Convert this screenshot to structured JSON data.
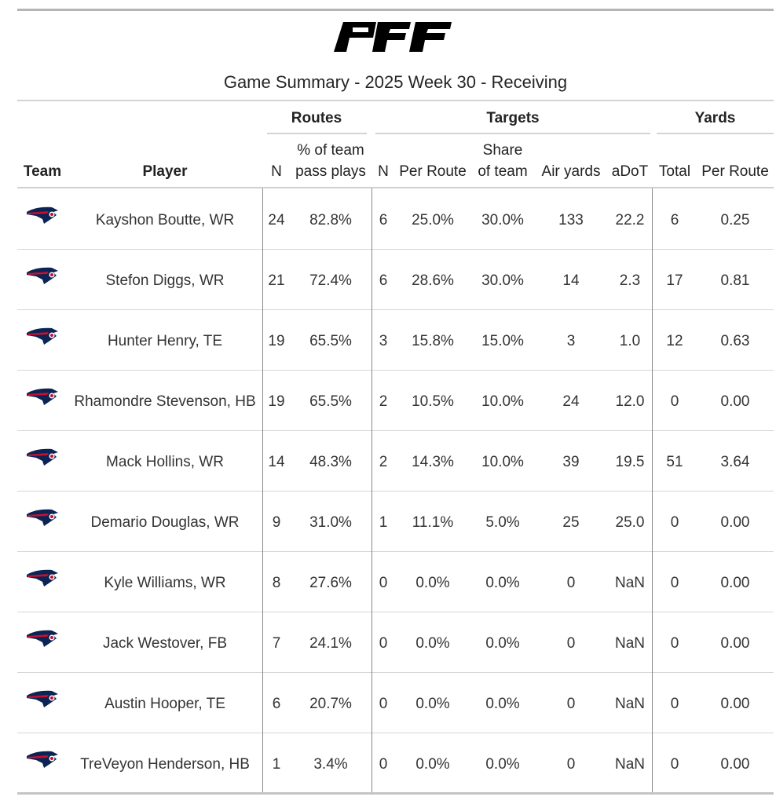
{
  "title": "Game Summary - 2025 Week 30 - Receiving",
  "logo_text": "PFF",
  "spanners": {
    "routes": "Routes",
    "targets": "Targets",
    "yards": "Yards"
  },
  "columns": {
    "team": "Team",
    "player": "Player",
    "routes_n": "N",
    "routes_pct_l1": "% of team",
    "routes_pct_l2": "pass plays",
    "targets_n": "N",
    "targets_per_route": "Per Route",
    "share_l1": "Share",
    "share_l2": "of team",
    "air_yards": "Air yards",
    "adot": "aDoT",
    "yards_total": "Total",
    "yards_per_route": "Per Route"
  },
  "team_icon": "patriots-logo-icon",
  "colors": {
    "navy": "#0b2454",
    "red": "#c8102e",
    "silver": "#b0b7bc"
  },
  "rows": [
    {
      "player": "Kayshon Boutte, WR",
      "routes": "24",
      "route_pct": "82.8%",
      "targets": "6",
      "tgt_per_route": "25.0%",
      "share": "30.0%",
      "air_yards": "133",
      "adot": "22.2",
      "yards": "6",
      "yds_per_route": "0.25"
    },
    {
      "player": "Stefon Diggs, WR",
      "routes": "21",
      "route_pct": "72.4%",
      "targets": "6",
      "tgt_per_route": "28.6%",
      "share": "30.0%",
      "air_yards": "14",
      "adot": "2.3",
      "yards": "17",
      "yds_per_route": "0.81"
    },
    {
      "player": "Hunter Henry, TE",
      "routes": "19",
      "route_pct": "65.5%",
      "targets": "3",
      "tgt_per_route": "15.8%",
      "share": "15.0%",
      "air_yards": "3",
      "adot": "1.0",
      "yards": "12",
      "yds_per_route": "0.63"
    },
    {
      "player": "Rhamondre Stevenson, HB",
      "routes": "19",
      "route_pct": "65.5%",
      "targets": "2",
      "tgt_per_route": "10.5%",
      "share": "10.0%",
      "air_yards": "24",
      "adot": "12.0",
      "yards": "0",
      "yds_per_route": "0.00"
    },
    {
      "player": "Mack Hollins, WR",
      "routes": "14",
      "route_pct": "48.3%",
      "targets": "2",
      "tgt_per_route": "14.3%",
      "share": "10.0%",
      "air_yards": "39",
      "adot": "19.5",
      "yards": "51",
      "yds_per_route": "3.64"
    },
    {
      "player": "Demario Douglas, WR",
      "routes": "9",
      "route_pct": "31.0%",
      "targets": "1",
      "tgt_per_route": "11.1%",
      "share": "5.0%",
      "air_yards": "25",
      "adot": "25.0",
      "yards": "0",
      "yds_per_route": "0.00"
    },
    {
      "player": "Kyle Williams, WR",
      "routes": "8",
      "route_pct": "27.6%",
      "targets": "0",
      "tgt_per_route": "0.0%",
      "share": "0.0%",
      "air_yards": "0",
      "adot": "NaN",
      "yards": "0",
      "yds_per_route": "0.00"
    },
    {
      "player": "Jack Westover, FB",
      "routes": "7",
      "route_pct": "24.1%",
      "targets": "0",
      "tgt_per_route": "0.0%",
      "share": "0.0%",
      "air_yards": "0",
      "adot": "NaN",
      "yards": "0",
      "yds_per_route": "0.00"
    },
    {
      "player": "Austin Hooper, TE",
      "routes": "6",
      "route_pct": "20.7%",
      "targets": "0",
      "tgt_per_route": "0.0%",
      "share": "0.0%",
      "air_yards": "0",
      "adot": "NaN",
      "yards": "0",
      "yds_per_route": "0.00"
    },
    {
      "player": "TreVeyon Henderson, HB",
      "routes": "1",
      "route_pct": "3.4%",
      "targets": "0",
      "tgt_per_route": "0.0%",
      "share": "0.0%",
      "air_yards": "0",
      "adot": "NaN",
      "yards": "0",
      "yds_per_route": "0.00"
    }
  ]
}
